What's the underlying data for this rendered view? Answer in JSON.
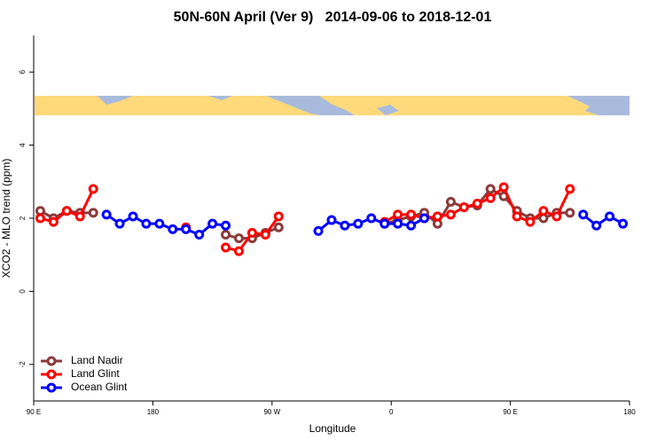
{
  "chart_data": {
    "type": "line",
    "title": "50N-60N April (Ver 9)   2014-09-06 to 2018-12-01",
    "x_label": "Longitude",
    "y_label": "XCO2 - MLO trend (ppm)",
    "xlim": [
      90,
      540
    ],
    "ylim": [
      -3,
      7
    ],
    "xticks": [
      {
        "value": 90,
        "label": "90 E"
      },
      {
        "value": 180,
        "label": "180"
      },
      {
        "value": 270,
        "label": "90 W"
      },
      {
        "value": 360,
        "label": "0"
      },
      {
        "value": 450,
        "label": "90 E"
      },
      {
        "value": 540,
        "label": "180"
      }
    ],
    "yticks": [
      -2,
      0,
      2,
      4,
      6
    ],
    "legend": "bottom-left",
    "x": [
      95,
      105,
      115,
      125,
      135,
      145,
      155,
      165,
      175,
      185,
      195,
      205,
      215,
      225,
      235,
      245,
      255,
      265,
      275,
      285,
      295,
      305,
      315,
      325,
      335,
      345,
      355,
      365,
      375,
      385,
      395,
      405,
      415,
      425,
      435,
      445,
      455,
      465,
      475,
      485,
      495,
      505,
      515,
      525,
      535
    ],
    "series": [
      {
        "name": "Land Nadir",
        "color": "#8b3a3a",
        "values": [
          2.2,
          2.0,
          2.2,
          2.15,
          2.15,
          null,
          null,
          null,
          null,
          null,
          null,
          null,
          null,
          null,
          1.55,
          1.45,
          1.45,
          1.6,
          1.75,
          null,
          null,
          null,
          null,
          null,
          null,
          null,
          1.85,
          1.95,
          2.05,
          2.15,
          1.85,
          2.45,
          2.3,
          2.35,
          2.8,
          2.6,
          2.2,
          2.0,
          2.0,
          2.15,
          2.15,
          null,
          null,
          null,
          null
        ]
      },
      {
        "name": "Land Glint",
        "color": "#ff0000",
        "values": [
          2.0,
          1.9,
          2.2,
          2.05,
          2.8,
          null,
          null,
          null,
          null,
          null,
          null,
          1.75,
          null,
          null,
          1.2,
          1.1,
          1.6,
          1.55,
          2.05,
          null,
          null,
          null,
          null,
          null,
          null,
          null,
          1.9,
          2.1,
          2.1,
          2.0,
          2.05,
          2.1,
          2.3,
          2.4,
          2.55,
          2.85,
          2.05,
          1.9,
          2.2,
          2.05,
          2.8,
          null,
          null,
          null,
          null
        ]
      },
      {
        "name": "Ocean Glint",
        "color": "#0000ff",
        "values": [
          null,
          null,
          null,
          null,
          null,
          2.1,
          1.85,
          2.05,
          1.85,
          1.85,
          1.7,
          1.7,
          1.55,
          1.85,
          1.8,
          null,
          null,
          null,
          null,
          null,
          null,
          1.65,
          1.95,
          1.8,
          1.85,
          2.0,
          1.85,
          1.85,
          1.8,
          2.0,
          null,
          null,
          null,
          null,
          null,
          null,
          null,
          null,
          null,
          null,
          null,
          2.1,
          1.8,
          2.05,
          1.85
        ]
      }
    ]
  }
}
